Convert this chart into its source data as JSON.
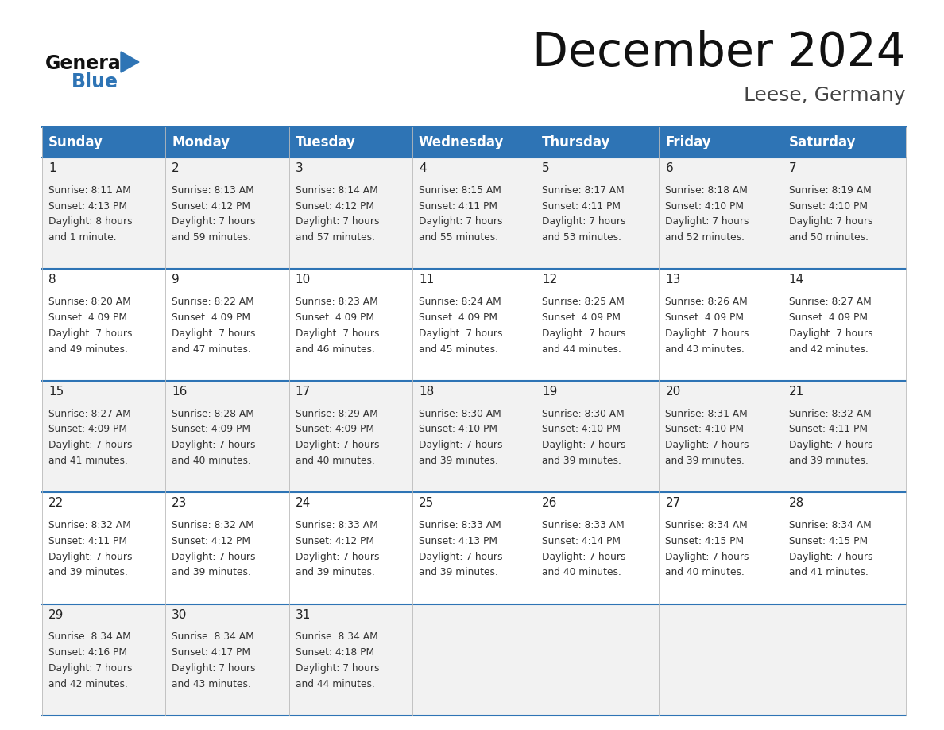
{
  "title": "December 2024",
  "subtitle": "Leese, Germany",
  "days_of_week": [
    "Sunday",
    "Monday",
    "Tuesday",
    "Wednesday",
    "Thursday",
    "Friday",
    "Saturday"
  ],
  "header_bg": "#2E74B5",
  "header_text": "#FFFFFF",
  "row_bg_odd": "#F2F2F2",
  "row_bg_even": "#FFFFFF",
  "day_num_color": "#222222",
  "text_color": "#333333",
  "title_color": "#111111",
  "subtitle_color": "#444444",
  "grid_color": "#2E74B5",
  "logo_general_color": "#111111",
  "logo_blue_color": "#2E74B5",
  "logo_triangle_color": "#2E74B5",
  "calendar_data": [
    {
      "day": 1,
      "col": 0,
      "row": 0,
      "sunrise": "8:11 AM",
      "sunset": "4:13 PM",
      "daylight_line1": "8 hours",
      "daylight_line2": "and 1 minute."
    },
    {
      "day": 2,
      "col": 1,
      "row": 0,
      "sunrise": "8:13 AM",
      "sunset": "4:12 PM",
      "daylight_line1": "7 hours",
      "daylight_line2": "and 59 minutes."
    },
    {
      "day": 3,
      "col": 2,
      "row": 0,
      "sunrise": "8:14 AM",
      "sunset": "4:12 PM",
      "daylight_line1": "7 hours",
      "daylight_line2": "and 57 minutes."
    },
    {
      "day": 4,
      "col": 3,
      "row": 0,
      "sunrise": "8:15 AM",
      "sunset": "4:11 PM",
      "daylight_line1": "7 hours",
      "daylight_line2": "and 55 minutes."
    },
    {
      "day": 5,
      "col": 4,
      "row": 0,
      "sunrise": "8:17 AM",
      "sunset": "4:11 PM",
      "daylight_line1": "7 hours",
      "daylight_line2": "and 53 minutes."
    },
    {
      "day": 6,
      "col": 5,
      "row": 0,
      "sunrise": "8:18 AM",
      "sunset": "4:10 PM",
      "daylight_line1": "7 hours",
      "daylight_line2": "and 52 minutes."
    },
    {
      "day": 7,
      "col": 6,
      "row": 0,
      "sunrise": "8:19 AM",
      "sunset": "4:10 PM",
      "daylight_line1": "7 hours",
      "daylight_line2": "and 50 minutes."
    },
    {
      "day": 8,
      "col": 0,
      "row": 1,
      "sunrise": "8:20 AM",
      "sunset": "4:09 PM",
      "daylight_line1": "7 hours",
      "daylight_line2": "and 49 minutes."
    },
    {
      "day": 9,
      "col": 1,
      "row": 1,
      "sunrise": "8:22 AM",
      "sunset": "4:09 PM",
      "daylight_line1": "7 hours",
      "daylight_line2": "and 47 minutes."
    },
    {
      "day": 10,
      "col": 2,
      "row": 1,
      "sunrise": "8:23 AM",
      "sunset": "4:09 PM",
      "daylight_line1": "7 hours",
      "daylight_line2": "and 46 minutes."
    },
    {
      "day": 11,
      "col": 3,
      "row": 1,
      "sunrise": "8:24 AM",
      "sunset": "4:09 PM",
      "daylight_line1": "7 hours",
      "daylight_line2": "and 45 minutes."
    },
    {
      "day": 12,
      "col": 4,
      "row": 1,
      "sunrise": "8:25 AM",
      "sunset": "4:09 PM",
      "daylight_line1": "7 hours",
      "daylight_line2": "and 44 minutes."
    },
    {
      "day": 13,
      "col": 5,
      "row": 1,
      "sunrise": "8:26 AM",
      "sunset": "4:09 PM",
      "daylight_line1": "7 hours",
      "daylight_line2": "and 43 minutes."
    },
    {
      "day": 14,
      "col": 6,
      "row": 1,
      "sunrise": "8:27 AM",
      "sunset": "4:09 PM",
      "daylight_line1": "7 hours",
      "daylight_line2": "and 42 minutes."
    },
    {
      "day": 15,
      "col": 0,
      "row": 2,
      "sunrise": "8:27 AM",
      "sunset": "4:09 PM",
      "daylight_line1": "7 hours",
      "daylight_line2": "and 41 minutes."
    },
    {
      "day": 16,
      "col": 1,
      "row": 2,
      "sunrise": "8:28 AM",
      "sunset": "4:09 PM",
      "daylight_line1": "7 hours",
      "daylight_line2": "and 40 minutes."
    },
    {
      "day": 17,
      "col": 2,
      "row": 2,
      "sunrise": "8:29 AM",
      "sunset": "4:09 PM",
      "daylight_line1": "7 hours",
      "daylight_line2": "and 40 minutes."
    },
    {
      "day": 18,
      "col": 3,
      "row": 2,
      "sunrise": "8:30 AM",
      "sunset": "4:10 PM",
      "daylight_line1": "7 hours",
      "daylight_line2": "and 39 minutes."
    },
    {
      "day": 19,
      "col": 4,
      "row": 2,
      "sunrise": "8:30 AM",
      "sunset": "4:10 PM",
      "daylight_line1": "7 hours",
      "daylight_line2": "and 39 minutes."
    },
    {
      "day": 20,
      "col": 5,
      "row": 2,
      "sunrise": "8:31 AM",
      "sunset": "4:10 PM",
      "daylight_line1": "7 hours",
      "daylight_line2": "and 39 minutes."
    },
    {
      "day": 21,
      "col": 6,
      "row": 2,
      "sunrise": "8:32 AM",
      "sunset": "4:11 PM",
      "daylight_line1": "7 hours",
      "daylight_line2": "and 39 minutes."
    },
    {
      "day": 22,
      "col": 0,
      "row": 3,
      "sunrise": "8:32 AM",
      "sunset": "4:11 PM",
      "daylight_line1": "7 hours",
      "daylight_line2": "and 39 minutes."
    },
    {
      "day": 23,
      "col": 1,
      "row": 3,
      "sunrise": "8:32 AM",
      "sunset": "4:12 PM",
      "daylight_line1": "7 hours",
      "daylight_line2": "and 39 minutes."
    },
    {
      "day": 24,
      "col": 2,
      "row": 3,
      "sunrise": "8:33 AM",
      "sunset": "4:12 PM",
      "daylight_line1": "7 hours",
      "daylight_line2": "and 39 minutes."
    },
    {
      "day": 25,
      "col": 3,
      "row": 3,
      "sunrise": "8:33 AM",
      "sunset": "4:13 PM",
      "daylight_line1": "7 hours",
      "daylight_line2": "and 39 minutes."
    },
    {
      "day": 26,
      "col": 4,
      "row": 3,
      "sunrise": "8:33 AM",
      "sunset": "4:14 PM",
      "daylight_line1": "7 hours",
      "daylight_line2": "and 40 minutes."
    },
    {
      "day": 27,
      "col": 5,
      "row": 3,
      "sunrise": "8:34 AM",
      "sunset": "4:15 PM",
      "daylight_line1": "7 hours",
      "daylight_line2": "and 40 minutes."
    },
    {
      "day": 28,
      "col": 6,
      "row": 3,
      "sunrise": "8:34 AM",
      "sunset": "4:15 PM",
      "daylight_line1": "7 hours",
      "daylight_line2": "and 41 minutes."
    },
    {
      "day": 29,
      "col": 0,
      "row": 4,
      "sunrise": "8:34 AM",
      "sunset": "4:16 PM",
      "daylight_line1": "7 hours",
      "daylight_line2": "and 42 minutes."
    },
    {
      "day": 30,
      "col": 1,
      "row": 4,
      "sunrise": "8:34 AM",
      "sunset": "4:17 PM",
      "daylight_line1": "7 hours",
      "daylight_line2": "and 43 minutes."
    },
    {
      "day": 31,
      "col": 2,
      "row": 4,
      "sunrise": "8:34 AM",
      "sunset": "4:18 PM",
      "daylight_line1": "7 hours",
      "daylight_line2": "and 44 minutes."
    }
  ]
}
